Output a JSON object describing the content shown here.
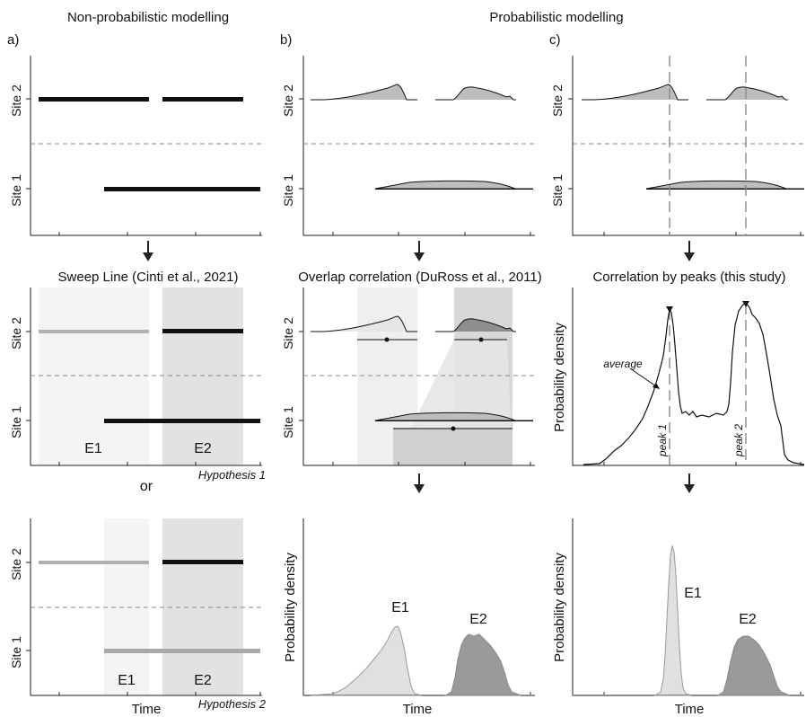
{
  "columns": {
    "a_title": "Non-probabilistic modelling",
    "bc_title": "Probabilistic modelling"
  },
  "panel_letters": {
    "a": "a)",
    "b": "b)",
    "c": "c)"
  },
  "site_labels": {
    "site2": "Site 2",
    "site1": "Site 1"
  },
  "subtitles": {
    "a": "Sweep Line  (Cinti et al., 2021)",
    "b": "Overlap correlation (DuRoss et al., 2011)",
    "c": "Correlation by peaks (this study)"
  },
  "hypotheses": {
    "h1": "Hypothesis 1",
    "h2": "Hypothesis 2",
    "or": "or"
  },
  "events": {
    "e1": "E1",
    "e2": "E2"
  },
  "axes": {
    "time": "Time",
    "prob_density": "Probability density"
  },
  "annotations": {
    "average": "average",
    "peak1": "peak 1",
    "peak2": "peak 2"
  },
  "colors": {
    "dark": "#111111",
    "mid_gray": "#9a9a9a",
    "light_gray": "#e0e0e0",
    "shade_light": "#f4f4f4",
    "shade_dark": "#e2e2e2"
  },
  "icons": [
    "down-arrow-icon"
  ]
}
